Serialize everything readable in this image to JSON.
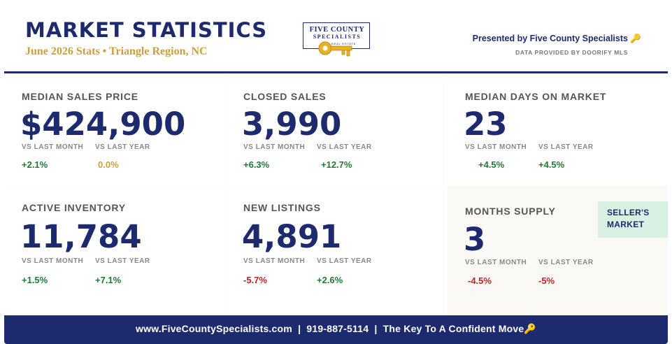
{
  "header": {
    "title": "MARKET STATISTICS",
    "subtitle": "June 2026 Stats • Triangle Region, NC",
    "presented_by": "Presented by Five County Specialists 🔑",
    "data_provided": "DATA PROVIDED BY DOORIFY MLS",
    "logo": {
      "line1": "FIVE COUNTY",
      "line2": "SPECIALISTS",
      "line3": "REAL ESTATE",
      "icon": "key-icon",
      "key_color": "#e8b323"
    }
  },
  "labels": {
    "vs_last_month": "VS LAST MONTH",
    "vs_last_year": "VS LAST YEAR"
  },
  "stats": [
    {
      "label": "MEDIAN SALES PRICE",
      "value": "$424,900",
      "month": "+2.1%",
      "year": "0.0%"
    },
    {
      "label": "CLOSED SALES",
      "value": "3,990",
      "month": "+6.3%",
      "year": "+12.7%"
    },
    {
      "label": "MEDIAN DAYS ON MARKET",
      "value": "23",
      "month": "+4.5%",
      "year": "+4.5%"
    },
    {
      "label": "ACTIVE INVENTORY",
      "value": "11,784",
      "month": "+1.5%",
      "year": "+7.1%"
    },
    {
      "label": "NEW LISTINGS",
      "value": "4,891",
      "month": "-5.7%",
      "year": "+2.6%"
    },
    {
      "label": "MONTHS SUPPLY",
      "value": "3",
      "month": "-4.5%",
      "year": "-5%",
      "badge_line1": "SELLER'S",
      "badge_line2": "MARKET"
    }
  ],
  "footer": {
    "text": "www.FiveCountySpecialists.com  |  919-887-5114  |  The Key To A Confident Move🔑"
  },
  "colors": {
    "navy": "#1e2a6e",
    "gold": "#c9a134",
    "positive": "#1f7a33",
    "negative": "#c0221e",
    "badge_bg": "#d9f1e2"
  }
}
